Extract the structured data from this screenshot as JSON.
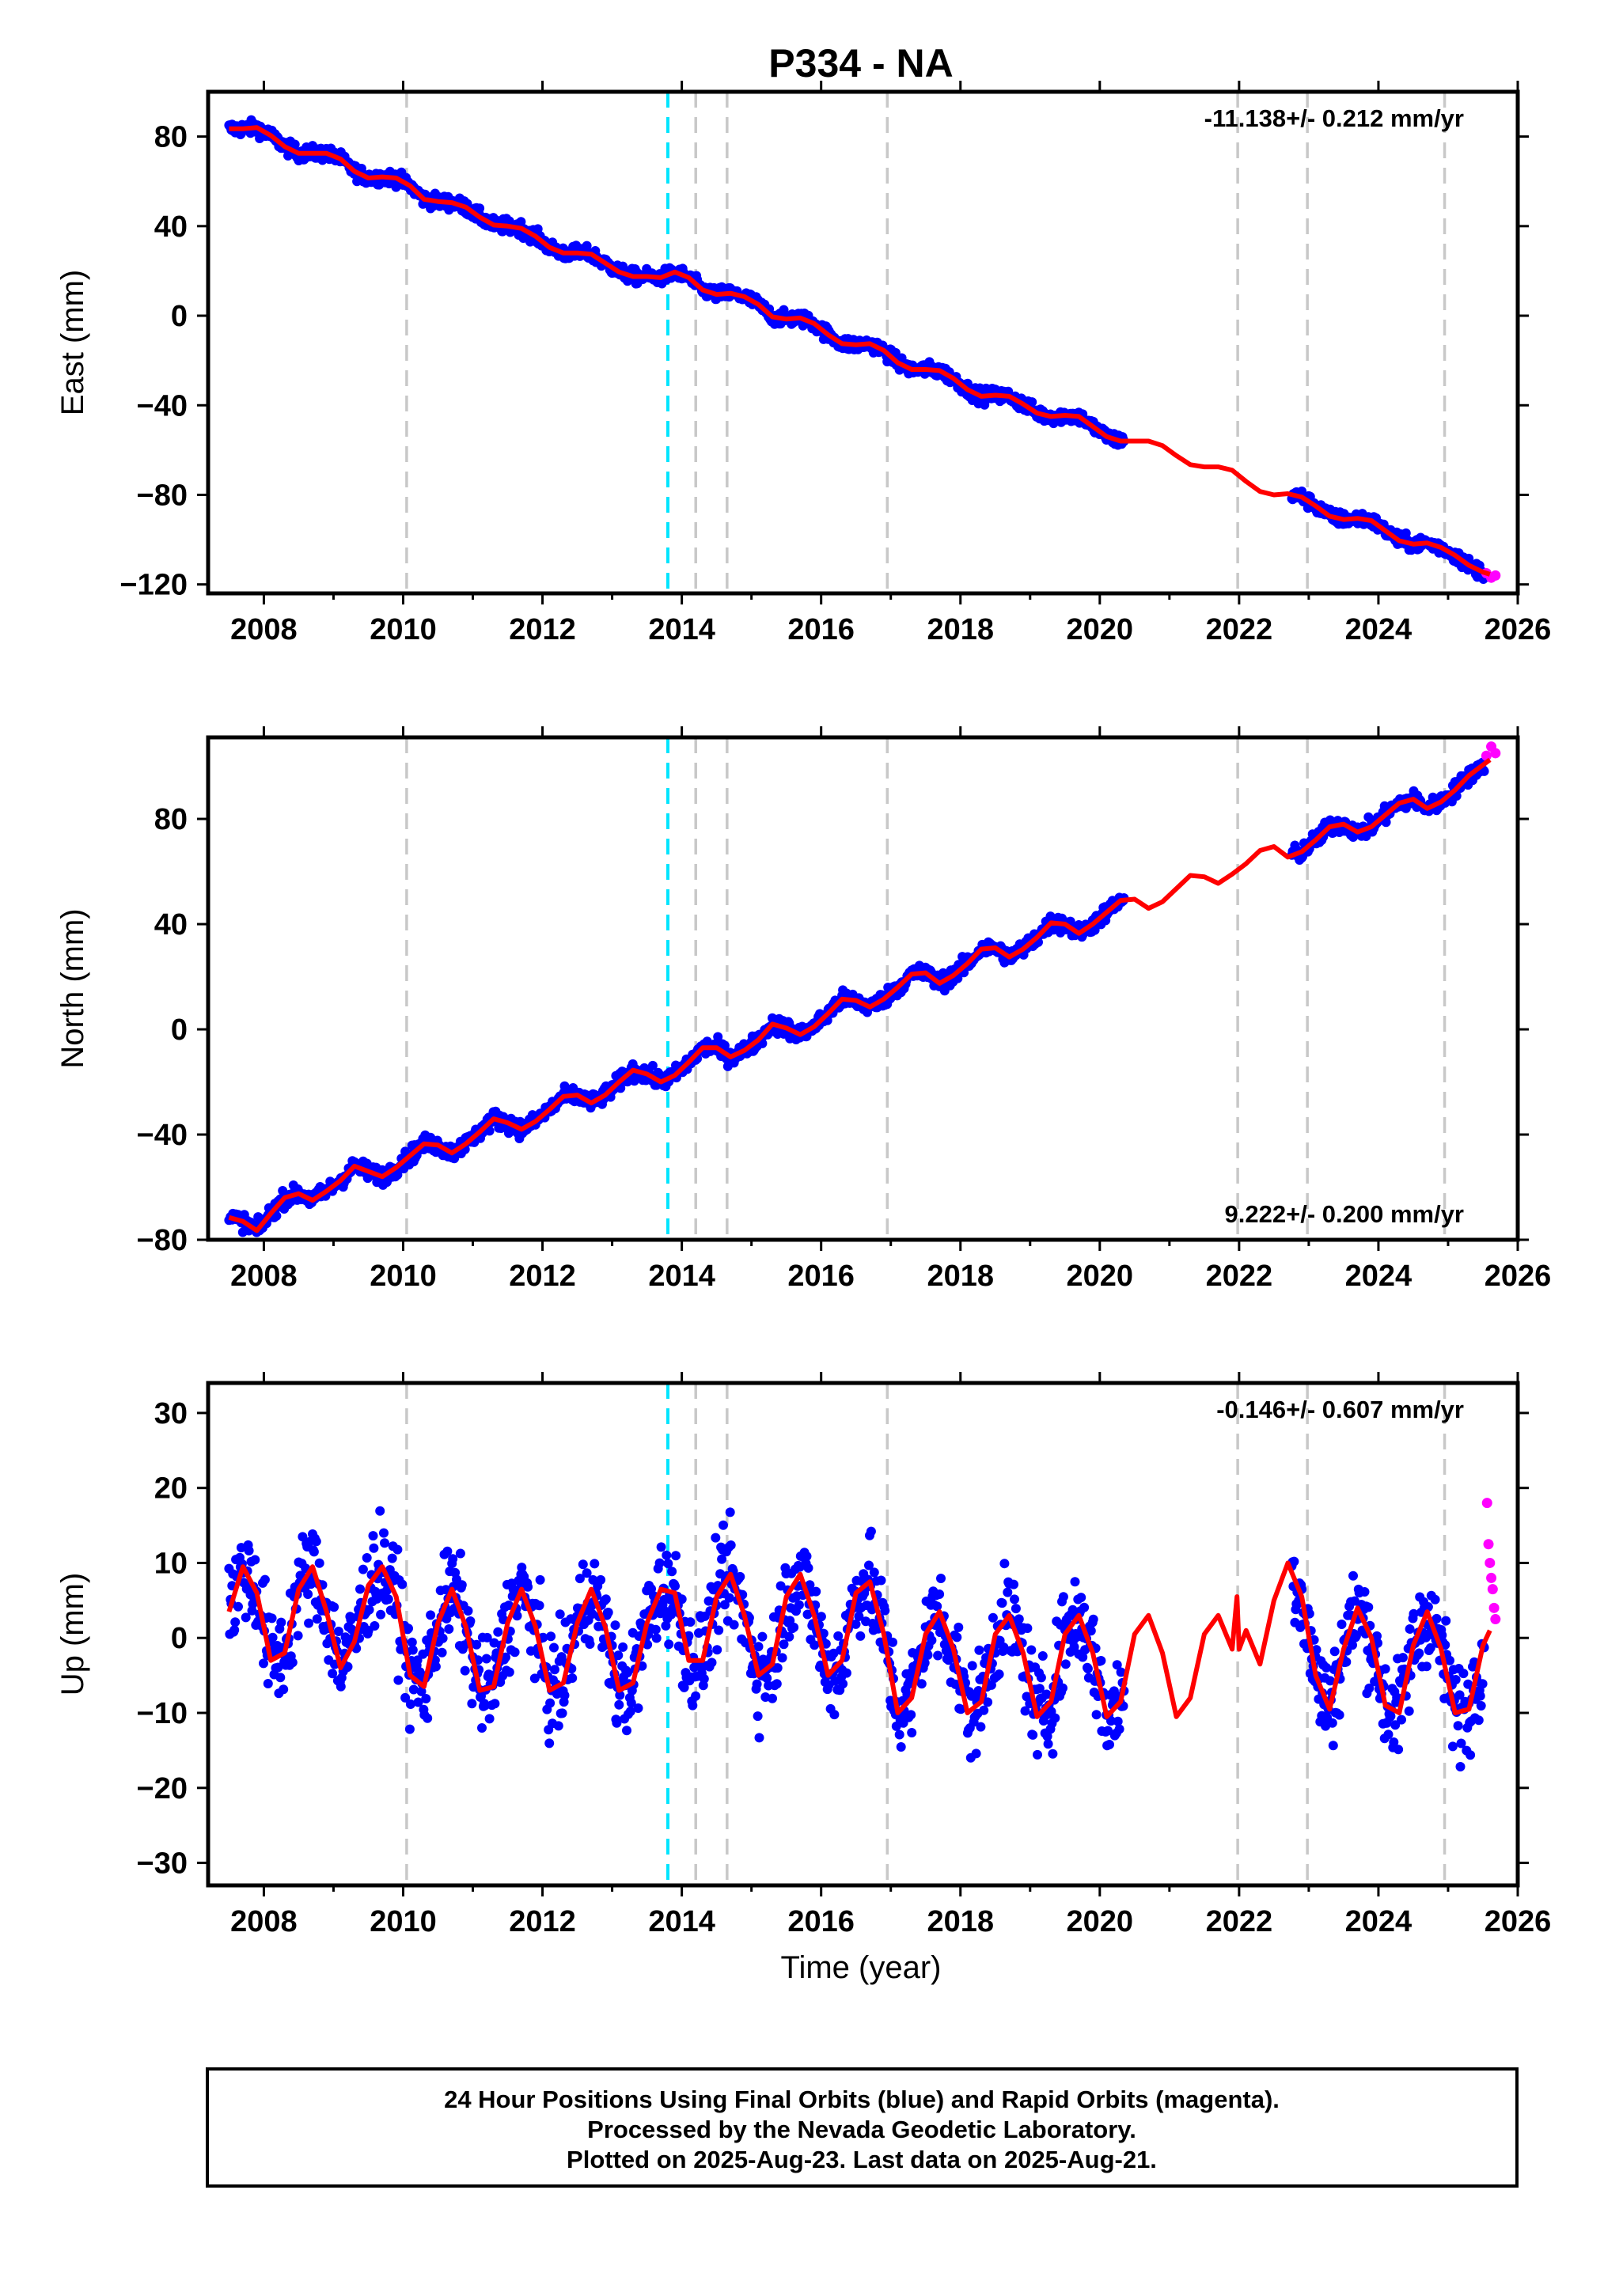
{
  "title": "P334 - NA",
  "colors": {
    "final_orbits": "#0000ff",
    "rapid_orbits": "#ff00ff",
    "model_fit": "#ff0000",
    "event_line": "#c8c8c8",
    "highlight_event_line": "#00e5ff",
    "frame": "#000000"
  },
  "xlabel": "Time (year)",
  "footer": {
    "line1": "24 Hour Positions Using Final Orbits (blue) and Rapid Orbits (magenta).",
    "line2": "Processed by the Nevada Geodetic Laboratory.",
    "line3": "Plotted on 2025-Aug-23. Last data on 2025-Aug-21."
  },
  "chart_data": [
    {
      "type": "scatter",
      "component": "east",
      "ylabel": "East (mm)",
      "rate": "-11.138+/- 0.212 mm/yr",
      "rate_position": "top-right",
      "xlim": [
        2007.2,
        2026.0
      ],
      "ylim": [
        -124,
        100
      ],
      "xticks": [
        2008,
        2010,
        2012,
        2014,
        2016,
        2018,
        2020,
        2022,
        2024,
        2026
      ],
      "xtick_labels": [
        "2008",
        "2010",
        "2012",
        "2014",
        "2016",
        "2018",
        "2020",
        "2022",
        "2024",
        "2026"
      ],
      "yticks": [
        80,
        40,
        0,
        -40,
        -80,
        -120
      ],
      "ytick_labels": [
        "80",
        "40",
        "0",
        "−40",
        "−80",
        "−120"
      ],
      "event_lines": [
        2010.05,
        2013.8,
        2014.2,
        2014.65,
        2016.95,
        2021.98,
        2022.98,
        2024.95
      ],
      "highlight_event_line": 2013.8,
      "data_gap": [
        2020.35,
        2022.75
      ],
      "series": [
        {
          "name": "Model fit",
          "kind": "line",
          "x": [
            2007.5,
            2007.7,
            2007.9,
            2008.1,
            2008.3,
            2008.5,
            2008.7,
            2008.9,
            2009.1,
            2009.3,
            2009.5,
            2009.7,
            2009.9,
            2010.1,
            2010.3,
            2010.5,
            2010.7,
            2010.9,
            2011.1,
            2011.3,
            2011.5,
            2011.7,
            2011.9,
            2012.1,
            2012.3,
            2012.5,
            2012.7,
            2012.9,
            2013.1,
            2013.3,
            2013.5,
            2013.7,
            2013.9,
            2014.1,
            2014.3,
            2014.5,
            2014.7,
            2014.9,
            2015.1,
            2015.3,
            2015.5,
            2015.7,
            2015.9,
            2016.1,
            2016.3,
            2016.5,
            2016.7,
            2016.9,
            2017.1,
            2017.3,
            2017.5,
            2017.7,
            2017.9,
            2018.1,
            2018.3,
            2018.5,
            2018.7,
            2018.9,
            2019.1,
            2019.3,
            2019.5,
            2019.7,
            2019.9,
            2020.1,
            2020.3,
            2020.5,
            2020.7,
            2020.9,
            2021.1,
            2021.3,
            2021.5,
            2021.7,
            2021.9,
            2022.1,
            2022.3,
            2022.5,
            2022.7,
            2022.9,
            2023.1,
            2023.3,
            2023.5,
            2023.7,
            2023.9,
            2024.1,
            2024.3,
            2024.5,
            2024.7,
            2024.9,
            2025.1,
            2025.3,
            2025.5,
            2025.6
          ],
          "y": [
            83.5,
            83.5,
            84.0,
            80.5,
            75.5,
            72.5,
            72.5,
            72.5,
            70.0,
            64.5,
            61.5,
            62.0,
            61.5,
            58.0,
            52.0,
            51.0,
            50.5,
            48.5,
            44.0,
            40.5,
            40.0,
            39.0,
            35.5,
            30.5,
            28.0,
            28.0,
            27.5,
            23.5,
            19.5,
            17.5,
            17.5,
            17.0,
            19.5,
            17.0,
            11.5,
            9.5,
            10.0,
            8.5,
            5.0,
            -0.5,
            -1.5,
            -1.0,
            -3.5,
            -8.5,
            -12.5,
            -13.0,
            -12.5,
            -15.5,
            -21.0,
            -24.0,
            -24.0,
            -24.5,
            -28.0,
            -33.0,
            -36.0,
            -35.5,
            -36.0,
            -39.5,
            -43.5,
            -45.0,
            -44.5,
            -45.0,
            -49.5,
            -54.0,
            -56.0,
            -56.0,
            -56.0,
            -58.0,
            -62.5,
            -66.5,
            -67.5,
            -67.5,
            -69.0,
            -74.0,
            -78.5,
            -80.0,
            -79.5,
            -81.0,
            -85.0,
            -89.5,
            -91.0,
            -90.5,
            -91.5,
            -96.0,
            -100.5,
            -102.0,
            -101.5,
            -103.5,
            -107.0,
            -111.5,
            -114.5,
            -115.5
          ]
        }
      ],
      "rapid_orbits": {
        "x": [
          2025.55,
          2025.62,
          2025.68
        ],
        "y": [
          -115.0,
          -117.0,
          -116.0
        ]
      }
    },
    {
      "type": "scatter",
      "component": "north",
      "ylabel": "North (mm)",
      "rate": "9.222+/- 0.200 mm/yr",
      "rate_position": "bottom-right",
      "xlim": [
        2007.2,
        2026.0
      ],
      "ylim": [
        -80,
        111
      ],
      "xticks": [
        2008,
        2010,
        2012,
        2014,
        2016,
        2018,
        2020,
        2022,
        2024,
        2026
      ],
      "xtick_labels": [
        "2008",
        "2010",
        "2012",
        "2014",
        "2016",
        "2018",
        "2020",
        "2022",
        "2024",
        "2026"
      ],
      "yticks": [
        80,
        40,
        0,
        -40,
        -80
      ],
      "ytick_labels": [
        "80",
        "40",
        "0",
        "−40",
        "−80"
      ],
      "event_lines": [
        2010.05,
        2013.8,
        2014.2,
        2014.65,
        2016.95,
        2021.98,
        2022.98,
        2024.95
      ],
      "highlight_event_line": 2013.8,
      "data_gap": [
        2020.35,
        2022.75
      ],
      "series": [
        {
          "name": "Model fit",
          "kind": "line",
          "x": [
            2007.5,
            2007.7,
            2007.9,
            2008.1,
            2008.3,
            2008.5,
            2008.7,
            2008.9,
            2009.1,
            2009.3,
            2009.5,
            2009.7,
            2009.9,
            2010.1,
            2010.3,
            2010.5,
            2010.7,
            2010.9,
            2011.1,
            2011.3,
            2011.5,
            2011.7,
            2011.9,
            2012.1,
            2012.3,
            2012.5,
            2012.7,
            2012.9,
            2013.1,
            2013.3,
            2013.5,
            2013.7,
            2013.9,
            2014.1,
            2014.3,
            2014.5,
            2014.7,
            2014.9,
            2015.1,
            2015.3,
            2015.5,
            2015.7,
            2015.9,
            2016.1,
            2016.3,
            2016.5,
            2016.7,
            2016.9,
            2017.1,
            2017.3,
            2017.5,
            2017.7,
            2017.9,
            2018.1,
            2018.3,
            2018.5,
            2018.7,
            2018.9,
            2019.1,
            2019.3,
            2019.5,
            2019.7,
            2019.9,
            2020.1,
            2020.3,
            2020.5,
            2020.7,
            2020.9,
            2021.1,
            2021.3,
            2021.5,
            2021.7,
            2021.9,
            2022.1,
            2022.3,
            2022.5,
            2022.7,
            2022.9,
            2023.1,
            2023.3,
            2023.5,
            2023.7,
            2023.9,
            2024.1,
            2024.3,
            2024.5,
            2024.7,
            2024.9,
            2025.1,
            2025.3,
            2025.5,
            2025.6
          ],
          "y": [
            -71.5,
            -73.0,
            -76.5,
            -70.0,
            -64.0,
            -62.5,
            -65.0,
            -61.5,
            -57.5,
            -52.0,
            -54.0,
            -56.0,
            -52.5,
            -48.0,
            -43.5,
            -44.0,
            -47.0,
            -43.5,
            -39.0,
            -34.0,
            -35.5,
            -38.0,
            -35.0,
            -30.5,
            -25.5,
            -25.0,
            -28.0,
            -25.0,
            -20.0,
            -15.5,
            -17.0,
            -20.0,
            -17.5,
            -12.5,
            -7.0,
            -7.0,
            -10.5,
            -8.0,
            -4.0,
            2.0,
            0.5,
            -2.0,
            1.0,
            6.0,
            11.5,
            11.0,
            8.5,
            11.5,
            16.0,
            21.0,
            21.5,
            17.5,
            20.5,
            25.0,
            30.5,
            31.0,
            27.5,
            30.5,
            35.0,
            40.5,
            40.0,
            36.5,
            40.0,
            44.5,
            49.0,
            49.5,
            46.0,
            48.5,
            53.5,
            58.5,
            58.0,
            55.5,
            59.0,
            63.0,
            68.0,
            69.5,
            65.5,
            67.5,
            72.0,
            77.0,
            78.0,
            75.0,
            77.0,
            81.5,
            86.0,
            87.5,
            84.0,
            86.5,
            91.0,
            96.5,
            100.5,
            102.5
          ]
        }
      ],
      "rapid_orbits": {
        "x": [
          2025.55,
          2025.62,
          2025.68
        ],
        "y": [
          104.0,
          107.5,
          105.0
        ]
      }
    },
    {
      "type": "scatter",
      "component": "up",
      "ylabel": "Up (mm)",
      "rate": "-0.146+/- 0.607 mm/yr",
      "rate_position": "top-right",
      "xlabel": "Time (year)",
      "xlim": [
        2007.2,
        2026.0
      ],
      "ylim": [
        -33,
        34
      ],
      "xticks": [
        2008,
        2010,
        2012,
        2014,
        2016,
        2018,
        2020,
        2022,
        2024,
        2026
      ],
      "xtick_labels": [
        "2008",
        "2010",
        "2012",
        "2014",
        "2016",
        "2018",
        "2020",
        "2022",
        "2024",
        "2026"
      ],
      "yticks": [
        30,
        20,
        10,
        0,
        -10,
        -20,
        -30
      ],
      "ytick_labels": [
        "30",
        "20",
        "10",
        "0",
        "−10",
        "−20",
        "−30"
      ],
      "event_lines": [
        2010.05,
        2013.8,
        2014.2,
        2014.65,
        2016.95,
        2021.98,
        2022.98,
        2024.95
      ],
      "highlight_event_line": 2013.8,
      "data_gap": [
        2020.35,
        2022.75
      ],
      "series": [
        {
          "name": "Model fit",
          "kind": "line",
          "x": [
            2007.5,
            2007.7,
            2007.9,
            2008.1,
            2008.3,
            2008.5,
            2008.7,
            2008.9,
            2009.1,
            2009.3,
            2009.5,
            2009.7,
            2009.9,
            2010.1,
            2010.3,
            2010.5,
            2010.7,
            2010.9,
            2011.1,
            2011.3,
            2011.5,
            2011.7,
            2011.9,
            2012.1,
            2012.3,
            2012.5,
            2012.7,
            2012.9,
            2013.1,
            2013.3,
            2013.5,
            2013.7,
            2013.9,
            2014.1,
            2014.3,
            2014.5,
            2014.7,
            2014.9,
            2015.1,
            2015.3,
            2015.5,
            2015.7,
            2015.9,
            2016.1,
            2016.3,
            2016.5,
            2016.7,
            2016.9,
            2017.1,
            2017.3,
            2017.5,
            2017.7,
            2017.9,
            2018.1,
            2018.3,
            2018.5,
            2018.7,
            2018.9,
            2019.1,
            2019.3,
            2019.5,
            2019.7,
            2019.9,
            2020.1,
            2020.3,
            2020.5,
            2020.7,
            2020.9,
            2021.1,
            2021.3,
            2021.5,
            2021.7,
            2021.9,
            2021.97,
            2022.0,
            2022.1,
            2022.3,
            2022.5,
            2022.7,
            2022.9,
            2023.1,
            2023.3,
            2023.5,
            2023.7,
            2023.9,
            2024.1,
            2024.3,
            2024.5,
            2024.7,
            2024.9,
            2025.1,
            2025.3,
            2025.5,
            2025.6
          ],
          "y": [
            3.5,
            9.5,
            6.0,
            -3.0,
            -2.0,
            6.5,
            9.5,
            3.5,
            -4.0,
            -0.5,
            7.0,
            9.5,
            5.5,
            -5.0,
            -6.5,
            2.0,
            6.5,
            1.5,
            -7.0,
            -6.5,
            2.0,
            6.5,
            1.5,
            -7.0,
            -6.0,
            2.0,
            6.5,
            1.5,
            -7.0,
            -6.0,
            2.0,
            6.5,
            6.0,
            -3.0,
            -3.0,
            5.5,
            8.5,
            3.0,
            -5.0,
            -3.5,
            5.5,
            8.5,
            3.0,
            -5.0,
            -3.0,
            6.0,
            7.5,
            0.5,
            -10.0,
            -8.0,
            0.5,
            3.5,
            -1.5,
            -10.0,
            -8.5,
            0.5,
            3.0,
            -2.0,
            -10.5,
            -8.5,
            0.5,
            3.0,
            -2.0,
            -10.5,
            -8.5,
            0.5,
            3.0,
            -2.0,
            -10.5,
            -8.0,
            0.5,
            3.0,
            -1.5,
            5.5,
            -1.5,
            1.0,
            -3.5,
            5.0,
            10.0,
            5.5,
            -5.0,
            -9.5,
            -1.5,
            4.0,
            0.0,
            -9.0,
            -10.0,
            -1.0,
            3.5,
            -1.5,
            -10.0,
            -9.5,
            -1.0,
            1.0
          ]
        }
      ],
      "rapid_orbits": {
        "x": [
          2025.56,
          2025.58,
          2025.6,
          2025.62,
          2025.64,
          2025.66,
          2025.68
        ],
        "y": [
          18.0,
          12.5,
          10.0,
          8.0,
          6.5,
          4.0,
          2.5
        ]
      }
    }
  ]
}
